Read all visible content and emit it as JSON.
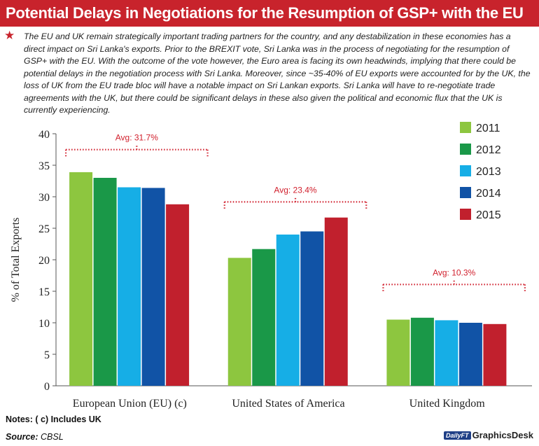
{
  "header": {
    "title": "Potential Delays in Negotiations for the Resumption of GSP+ with the EU",
    "intro": "The EU and UK remain strategically important trading partners for the country, and any destabilization in these economies has a direct impact on Sri Lanka's exports. Prior to the BREXIT vote, Sri Lanka was in the process of negotiating for the resumption of GSP+ with the EU. With the outcome of the vote however, the Euro area is facing its own headwinds, implying that there could be potential delays in the negotiation process with Sri Lanka. Moreover, since ~35-40% of EU exports were accounted for by the UK, the loss of UK from the EU trade bloc will have a notable impact on Sri Lankan exports. Sri Lanka will have to re-negotiate trade agreements with the UK, but there could be significant delays in these also given the political and economic flux that the UK is currently experiencing.",
    "star_icon": "star-icon"
  },
  "chart_data": {
    "type": "bar",
    "title": "",
    "xlabel": "",
    "ylabel": "% of Total Exports",
    "ylim": [
      0,
      40
    ],
    "yticks": [
      0,
      5,
      10,
      15,
      20,
      25,
      30,
      35,
      40
    ],
    "categories": [
      "European Union (EU) (c)",
      "United States of America",
      "United Kingdom"
    ],
    "series": [
      {
        "name": "2011",
        "color": "#8dc63f",
        "values": [
          33.9,
          20.3,
          10.5
        ]
      },
      {
        "name": "2012",
        "color": "#1a9848",
        "values": [
          33.0,
          21.7,
          10.8
        ]
      },
      {
        "name": "2013",
        "color": "#16aee6",
        "values": [
          31.5,
          24.0,
          10.4
        ]
      },
      {
        "name": "2014",
        "color": "#1153a6",
        "values": [
          31.4,
          24.5,
          10.0
        ]
      },
      {
        "name": "2015",
        "color": "#c1202d",
        "values": [
          28.8,
          26.7,
          9.8
        ]
      }
    ],
    "averages": [
      {
        "label": "Avg: 31.7%",
        "value": 31.7
      },
      {
        "label": "Avg: 23.4%",
        "value": 23.4
      },
      {
        "label": "Avg: 10.3%",
        "value": 10.3
      }
    ],
    "legend_position": "right",
    "grid": false
  },
  "footer": {
    "notes": "Notes: ( c) Includes UK",
    "source_label": "Source:",
    "source_value": "CBSL",
    "credit_logo": "DailyFT",
    "credit_text": "GraphicsDesk"
  },
  "colors": {
    "title_bar": "#c8232c",
    "avg_marker": "#d11f2c"
  }
}
